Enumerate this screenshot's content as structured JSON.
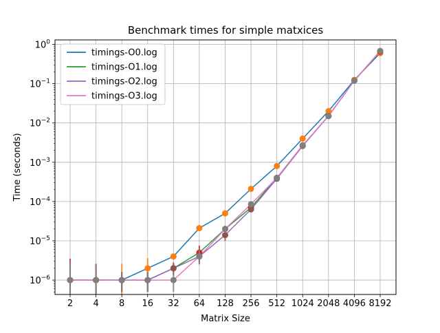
{
  "chart_data": {
    "type": "line",
    "title": "Benchmark times for simple matxices",
    "xlabel": "Matrix Size",
    "ylabel": "Time (seconds)",
    "yscale": "log",
    "ylim": [
      4.3e-07,
      1.3
    ],
    "grid": true,
    "legend_position": "top-left",
    "x": [
      2,
      4,
      8,
      16,
      32,
      64,
      128,
      256,
      512,
      1024,
      2048,
      4096,
      8192
    ],
    "x_tick_labels": [
      "2",
      "4",
      "8",
      "16",
      "32",
      "64",
      "128",
      "256",
      "512",
      "1024",
      "2048",
      "4096",
      "8192"
    ],
    "y_ticks": [
      {
        "value": 1e-06,
        "base": "10",
        "exp": "−6"
      },
      {
        "value": 1e-05,
        "base": "10",
        "exp": "−5"
      },
      {
        "value": 0.0001,
        "base": "10",
        "exp": "−4"
      },
      {
        "value": 0.001,
        "base": "10",
        "exp": "−3"
      },
      {
        "value": 0.01,
        "base": "10",
        "exp": "−2"
      },
      {
        "value": 0.1,
        "base": "10",
        "exp": "−1"
      },
      {
        "value": 1,
        "base": "10",
        "exp": "0"
      }
    ],
    "series": [
      {
        "name": "timings-O0.log",
        "color": "#1f77b4",
        "marker_color": "#ff7f0e",
        "values": [
          1e-06,
          1e-06,
          1e-06,
          2e-06,
          4e-06,
          2.1e-05,
          5e-05,
          0.00021,
          0.0008,
          0.004,
          0.02,
          0.125,
          0.6
        ],
        "error_low": [
          2e-07,
          2e-07,
          2e-07,
          1.3e-06,
          3.3e-06,
          1.8e-05,
          4.5e-05,
          0.00019,
          0.00075,
          0.0038,
          0.019,
          0.12,
          0.58
        ],
        "error_high": [
          2e-06,
          2e-06,
          2.6e-06,
          3.6e-06,
          4.5e-06,
          2.4e-05,
          5.5e-05,
          0.00023,
          0.00085,
          0.0042,
          0.021,
          0.13,
          0.62
        ]
      },
      {
        "name": "timings-O1.log",
        "color": "#2ca02c",
        "marker_color": "#d62728",
        "values": [
          1e-06,
          1e-06,
          1e-06,
          1e-06,
          2e-06,
          5e-06,
          2e-05,
          7e-05,
          0.0004,
          0.0027,
          0.015,
          0.12,
          0.65
        ],
        "error_low": [
          2e-07,
          2e-07,
          5e-07,
          5e-07,
          1.4e-06,
          2.8e-06,
          1.5e-05,
          6e-05,
          0.00037,
          0.0025,
          0.014,
          0.115,
          0.62
        ],
        "error_high": [
          3.5e-06,
          2.5e-06,
          1.6e-06,
          1.6e-06,
          2.8e-06,
          7.5e-06,
          2.4e-05,
          8e-05,
          0.00043,
          0.0029,
          0.016,
          0.125,
          0.68
        ]
      },
      {
        "name": "timings-O2.log",
        "color": "#9467bd",
        "marker_color": "#8c564b",
        "values": [
          1e-06,
          1e-06,
          1e-06,
          1e-06,
          2e-06,
          4e-06,
          1.4e-05,
          6.3e-05,
          0.00038,
          0.0026,
          0.015,
          0.12,
          0.68
        ],
        "error_low": [
          2e-07,
          2e-07,
          5e-07,
          5e-07,
          1.3e-06,
          2.6e-06,
          1e-05,
          5.5e-05,
          0.00035,
          0.0024,
          0.014,
          0.115,
          0.64
        ],
        "error_high": [
          2.8e-06,
          2.6e-06,
          1.6e-06,
          1.6e-06,
          2.7e-06,
          5.8e-06,
          1.8e-05,
          7e-05,
          0.00041,
          0.0028,
          0.016,
          0.125,
          0.71
        ]
      },
      {
        "name": "timings-O3.log",
        "color": "#e377c2",
        "marker_color": "#7f7f7f",
        "values": [
          1e-06,
          1e-06,
          1e-06,
          1e-06,
          1e-06,
          4e-06,
          2e-05,
          8.5e-05,
          0.0004,
          0.0027,
          0.015,
          0.12,
          0.68
        ],
        "error_low": [
          2e-07,
          2e-07,
          5e-07,
          5e-07,
          5e-07,
          2.5e-06,
          1.6e-05,
          7.5e-05,
          0.00037,
          0.0025,
          0.014,
          0.115,
          0.64
        ],
        "error_high": [
          2.8e-06,
          2.6e-06,
          1.6e-06,
          1.6e-06,
          1.6e-06,
          6e-06,
          2.4e-05,
          9.5e-05,
          0.00043,
          0.0029,
          0.016,
          0.125,
          0.71
        ]
      }
    ]
  }
}
